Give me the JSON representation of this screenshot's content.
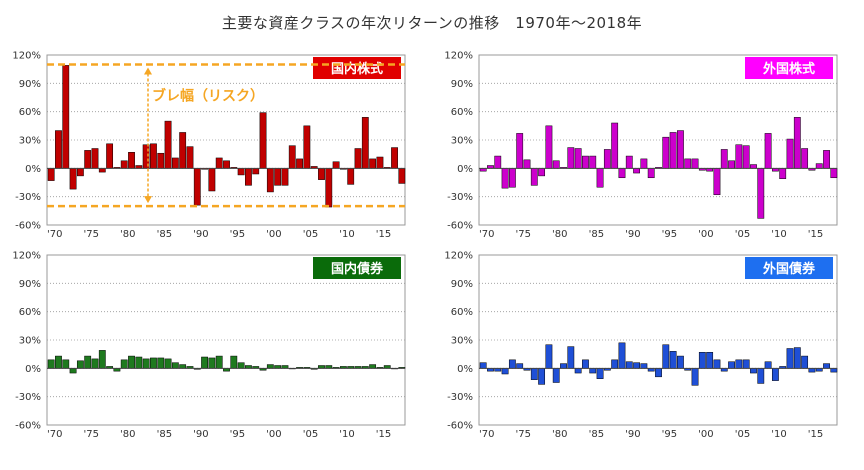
{
  "title": "主要な資産クラスの年次リターンの推移　1970年～2018年",
  "annotation": {
    "text": "ブレ幅（リスク）",
    "color": "#f5a623"
  },
  "chart_data": [
    {
      "type": "bar",
      "title": "国内株式",
      "color": "#c00000",
      "label_bg": "#e00000",
      "label_fg": "#ffffff",
      "ylim": [
        -60,
        120
      ],
      "yticks": [
        -60,
        -30,
        0,
        30,
        60,
        90,
        120
      ],
      "yticklabels": [
        "-60%",
        "-30%",
        "0%",
        "30%",
        "60%",
        "90%",
        "120%"
      ],
      "xticklabels": [
        "'70",
        "'75",
        "'80",
        "'85",
        "'90",
        "'95",
        "'00",
        "'05",
        "'10",
        "'15"
      ],
      "x": [
        1970,
        1971,
        1972,
        1973,
        1974,
        1975,
        1976,
        1977,
        1978,
        1979,
        1980,
        1981,
        1982,
        1983,
        1984,
        1985,
        1986,
        1987,
        1988,
        1989,
        1990,
        1991,
        1992,
        1993,
        1994,
        1995,
        1996,
        1997,
        1998,
        1999,
        2000,
        2001,
        2002,
        2003,
        2004,
        2005,
        2006,
        2007,
        2008,
        2009,
        2010,
        2011,
        2012,
        2013,
        2014,
        2015,
        2016,
        2017,
        2018
      ],
      "values": [
        -13,
        40,
        109,
        -22,
        -8,
        19,
        21,
        -4,
        26,
        1,
        8,
        17,
        3,
        25,
        26,
        16,
        50,
        11,
        38,
        23,
        -39,
        -1,
        -24,
        11,
        8,
        1,
        -7,
        -18,
        -6,
        59,
        -25,
        -18,
        -18,
        24,
        10,
        45,
        2,
        -12,
        -41,
        7,
        -1,
        -17,
        21,
        54,
        10,
        12,
        1,
        22,
        -16
      ],
      "dashed_lines": [
        110,
        -40
      ]
    },
    {
      "type": "bar",
      "title": "外国株式",
      "color": "#cc00cc",
      "label_bg": "#ff00ff",
      "label_fg": "#ffffff",
      "ylim": [
        -60,
        120
      ],
      "yticks": [
        -60,
        -30,
        0,
        30,
        60,
        90,
        120
      ],
      "yticklabels": [
        "-60%",
        "-30%",
        "0%",
        "30%",
        "60%",
        "90%",
        "120%"
      ],
      "xticklabels": [
        "'70",
        "'75",
        "'80",
        "'85",
        "'90",
        "'95",
        "'00",
        "'05",
        "'10",
        "'15"
      ],
      "x": [
        1970,
        1971,
        1972,
        1973,
        1974,
        1975,
        1976,
        1977,
        1978,
        1979,
        1980,
        1981,
        1982,
        1983,
        1984,
        1985,
        1986,
        1987,
        1988,
        1989,
        1990,
        1991,
        1992,
        1993,
        1994,
        1995,
        1996,
        1997,
        1998,
        1999,
        2000,
        2001,
        2002,
        2003,
        2004,
        2005,
        2006,
        2007,
        2008,
        2009,
        2010,
        2011,
        2012,
        2013,
        2014,
        2015,
        2016,
        2017,
        2018
      ],
      "values": [
        -3,
        3,
        13,
        -21,
        -20,
        37,
        9,
        -18,
        -8,
        45,
        8,
        1,
        22,
        21,
        13,
        13,
        -20,
        20,
        48,
        -10,
        13,
        -5,
        10,
        -10,
        1,
        33,
        38,
        40,
        10,
        10,
        -2,
        -3,
        -28,
        20,
        8,
        25,
        24,
        4,
        -53,
        37,
        -3,
        -11,
        31,
        54,
        21,
        -2,
        5,
        19,
        -10
      ]
    },
    {
      "type": "bar",
      "title": "国内債券",
      "color": "#1e7a1e",
      "label_bg": "#0a6b0a",
      "label_fg": "#ffffff",
      "ylim": [
        -60,
        120
      ],
      "yticks": [
        -60,
        -30,
        0,
        30,
        60,
        90,
        120
      ],
      "yticklabels": [
        "-60%",
        "-30%",
        "0%",
        "30%",
        "60%",
        "90%",
        "120%"
      ],
      "xticklabels": [
        "'70",
        "'75",
        "'80",
        "'85",
        "'90",
        "'95",
        "'00",
        "'05",
        "'10",
        "'15"
      ],
      "x": [
        1970,
        1971,
        1972,
        1973,
        1974,
        1975,
        1976,
        1977,
        1978,
        1979,
        1980,
        1981,
        1982,
        1983,
        1984,
        1985,
        1986,
        1987,
        1988,
        1989,
        1990,
        1991,
        1992,
        1993,
        1994,
        1995,
        1996,
        1997,
        1998,
        1999,
        2000,
        2001,
        2002,
        2003,
        2004,
        2005,
        2006,
        2007,
        2008,
        2009,
        2010,
        2011,
        2012,
        2013,
        2014,
        2015,
        2016,
        2017,
        2018
      ],
      "values": [
        9,
        13,
        9,
        -5,
        8,
        13,
        10,
        19,
        2,
        -3,
        9,
        13,
        12,
        10,
        11,
        11,
        10,
        6,
        4,
        2,
        -1,
        12,
        11,
        13,
        -3,
        13,
        6,
        3,
        2,
        -2,
        4,
        3,
        3,
        0,
        1,
        1,
        -1,
        3,
        3,
        1,
        2,
        2,
        2,
        2,
        4,
        1,
        3,
        0,
        1
      ]
    },
    {
      "type": "bar",
      "title": "外国債券",
      "color": "#1f4fd6",
      "label_bg": "#1e6ff0",
      "label_fg": "#ffffff",
      "ylim": [
        -60,
        120
      ],
      "yticks": [
        -60,
        -30,
        0,
        30,
        60,
        90,
        120
      ],
      "yticklabels": [
        "-60%",
        "-30%",
        "0%",
        "30%",
        "60%",
        "90%",
        "120%"
      ],
      "xticklabels": [
        "'70",
        "'75",
        "'80",
        "'85",
        "'90",
        "'95",
        "'00",
        "'05",
        "'10",
        "'15"
      ],
      "x": [
        1970,
        1971,
        1972,
        1973,
        1974,
        1975,
        1976,
        1977,
        1978,
        1979,
        1980,
        1981,
        1982,
        1983,
        1984,
        1985,
        1986,
        1987,
        1988,
        1989,
        1990,
        1991,
        1992,
        1993,
        1994,
        1995,
        1996,
        1997,
        1998,
        1999,
        2000,
        2001,
        2002,
        2003,
        2004,
        2005,
        2006,
        2007,
        2008,
        2009,
        2010,
        2011,
        2012,
        2013,
        2014,
        2015,
        2016,
        2017,
        2018
      ],
      "values": [
        6,
        -3,
        -3,
        -6,
        9,
        5,
        -2,
        -12,
        -17,
        25,
        -15,
        5,
        23,
        -5,
        9,
        -5,
        -11,
        -2,
        9,
        27,
        7,
        6,
        5,
        -3,
        -9,
        25,
        18,
        13,
        -2,
        -18,
        17,
        17,
        9,
        -3,
        7,
        9,
        9,
        -5,
        -16,
        7,
        -13,
        2,
        21,
        22,
        13,
        -4,
        -3,
        5,
        -4
      ]
    }
  ]
}
